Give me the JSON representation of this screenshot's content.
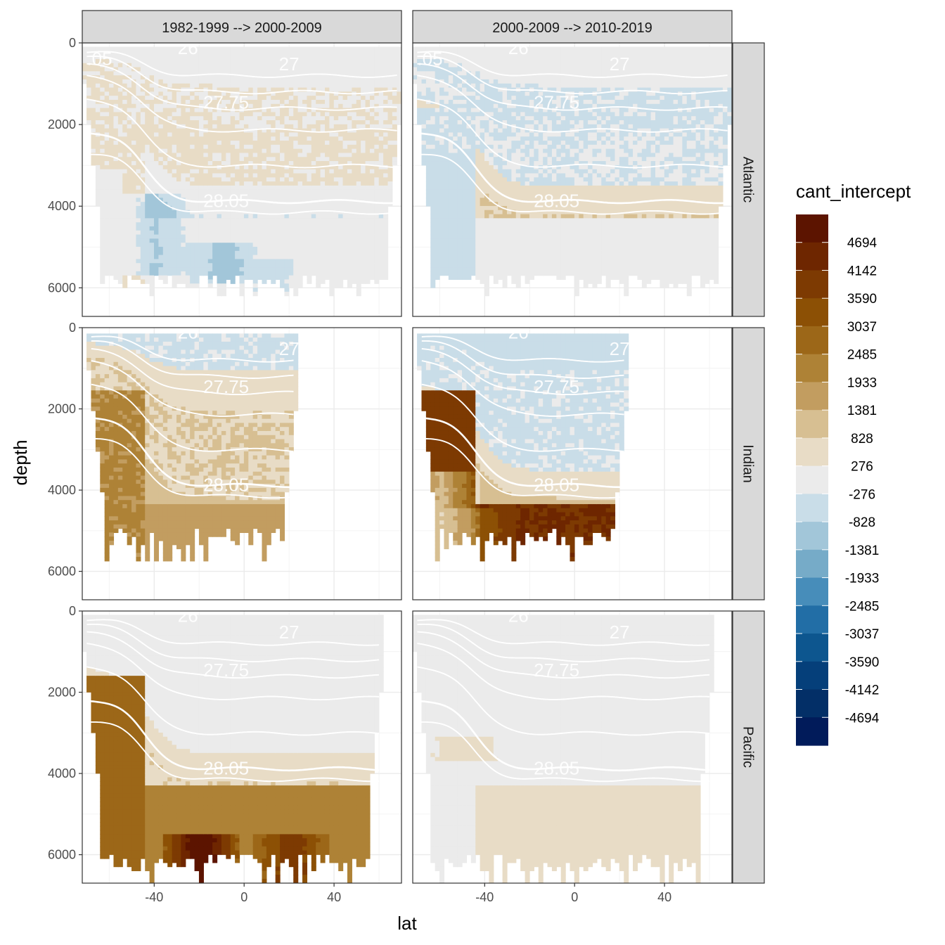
{
  "chart_data": {
    "type": "heatmap",
    "title": "",
    "xlabel": "lat",
    "ylabel": "depth",
    "xlim": [
      -72,
      70
    ],
    "ylim": [
      6700,
      0
    ],
    "x_ticks": [
      -40,
      0,
      40
    ],
    "y_ticks": [
      0,
      2000,
      4000,
      6000
    ],
    "column_facets": [
      "1982-1999 --> 2000-2009",
      "2000-2009 --> 2010-2019"
    ],
    "row_facets": [
      "Atlantic",
      "Indian",
      "Pacific"
    ],
    "legend": {
      "title": "cant_intercept",
      "breaks": [
        4694,
        4142,
        3590,
        3037,
        2485,
        1933,
        1381,
        828,
        276,
        -276,
        -828,
        -1381,
        -1933,
        -2485,
        -3037,
        -3590,
        -4142,
        -4694
      ],
      "break_labels": [
        "4694",
        "4142",
        "3590",
        "3037",
        "2485",
        "1933",
        "1381",
        "828",
        "276",
        "-276",
        "-828",
        "-1381",
        "-1933",
        "-2485",
        "-3037",
        "-3590",
        "-4142",
        "-4694"
      ],
      "colors": [
        "#5c1400",
        "#6e2600",
        "#7d3a02",
        "#8c5005",
        "#9c6718",
        "#ae8236",
        "#c29d60",
        "#d7bf92",
        "#e8dcc6",
        "#ebebeb",
        "#c9dde8",
        "#a2c6d9",
        "#76abc8",
        "#478dba",
        "#226ea6",
        "#0d568f",
        "#053f7a",
        "#032f67",
        "#011b5a"
      ]
    },
    "isopycnal_labels": [
      "27.75",
      "28.05",
      "27",
      "26",
      ".05"
    ],
    "panels": [
      {
        "row": "Atlantic",
        "col": 0,
        "lat_range": [
          -72,
          70
        ],
        "shelf": [
          -5.1,
          8.2
        ],
        "upper": [
          -0.3,
          0.5,
          0.6,
          0.8
        ],
        "upper_mid": -0.6,
        "deep": -0.4,
        "bottom": 0.2,
        "south_deep": 0.6,
        "floor": [
          5600,
          6200
        ],
        "bands": [
          [
            -1.8,
            -40,
            0.55,
            0.85
          ],
          [
            -2.3,
            -10,
            0.72,
            0.88
          ],
          [
            -1.2,
            12,
            0.78,
            0.9
          ]
        ]
      },
      {
        "row": "Atlantic",
        "col": 1,
        "lat_range": [
          -72,
          70
        ],
        "shelf": [
          -4.9,
          8.2
        ],
        "upper": [
          0.1,
          -0.6,
          -0.5,
          0.0
        ],
        "upper_mid": 0.0,
        "deep": 1.5,
        "bottom": 0.3,
        "south_deep": -0.6,
        "floor": [
          5600,
          6200
        ],
        "bands": [
          [
            -0.7,
            -60,
            0.4,
            0.98
          ]
        ]
      },
      {
        "row": "Indian",
        "col": 0,
        "lat_range": [
          -70,
          24
        ],
        "shelf": [
          -4.9,
          8.2
        ],
        "upper": [
          -0.6,
          1.0,
          1.5,
          1.0
        ],
        "upper_mid": 0.0,
        "deep": 1.9,
        "bottom": 3.3,
        "south_deep": 3.6,
        "floor": [
          4900,
          5700
        ],
        "bands": [
          [
            0.0,
            -60,
            0.35,
            0.6
          ],
          [
            0.0,
            -25,
            0.7,
            0.95
          ]
        ]
      },
      {
        "row": "Indian",
        "col": 1,
        "lat_range": [
          -70,
          24
        ],
        "shelf": [
          -4.9,
          8.2
        ],
        "upper": [
          -0.8,
          -0.6,
          -0.6,
          0.0
        ],
        "upper_mid": 0.0,
        "deep": 1.8,
        "bottom": 7.5,
        "south_deep": 7.0,
        "floor": [
          4900,
          5700
        ],
        "bands": [
          [
            -5.0,
            -60,
            0.52,
            1.0
          ],
          [
            -2.0,
            -45,
            0.65,
            0.92
          ]
        ]
      },
      {
        "row": "Pacific",
        "col": 0,
        "lat_range": [
          -72,
          62
        ],
        "shelf": [
          -4.9,
          8.2
        ],
        "upper": [
          0.0,
          0.0,
          0.0,
          0.0
        ],
        "upper_mid": 0.0,
        "deep": 1.4,
        "bottom": 4.3,
        "south_deep": 4.8,
        "floor": [
          5900,
          6700
        ],
        "bands": [
          [
            6.0,
            -20,
            0.82,
            1.0
          ],
          [
            3.0,
            20,
            0.82,
            1.0
          ]
        ]
      },
      {
        "row": "Pacific",
        "col": 1,
        "lat_range": [
          -72,
          62
        ],
        "shelf": [
          -4.9,
          8.2
        ],
        "upper": [
          0.0,
          0.0,
          0.0,
          0.0
        ],
        "upper_mid": 0.0,
        "deep": 0.0,
        "bottom": 0.9,
        "south_deep": 0.0,
        "floor": [
          5900,
          6700
        ],
        "bands": [
          [
            1.3,
            -50,
            0.45,
            0.55
          ]
        ]
      }
    ]
  }
}
